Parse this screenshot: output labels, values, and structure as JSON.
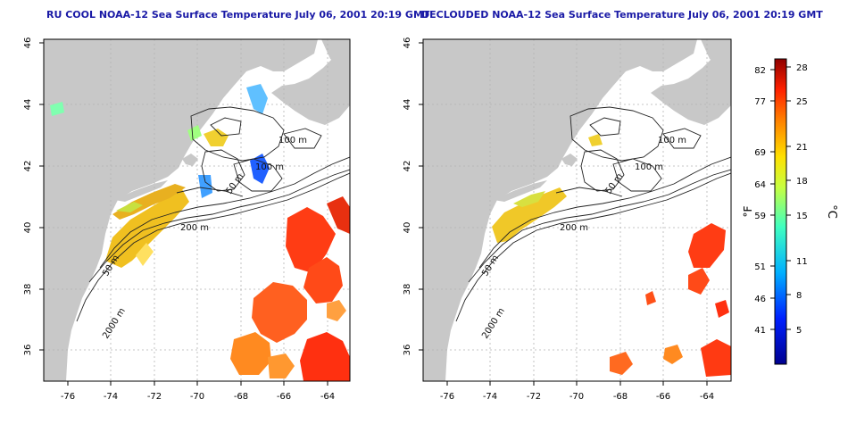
{
  "left_panel": {
    "title": "RU COOL NOAA-12 Sea Surface Temperature July 06, 2001 20:19 GMT"
  },
  "right_panel": {
    "title": "DECLOUDED NOAA-12 Sea Surface Temperature July 06, 2001 20:19 GMT"
  },
  "axes": {
    "x_ticks": [
      "-76",
      "-74",
      "-72",
      "-70",
      "-68",
      "-66",
      "-64"
    ],
    "y_ticks": [
      "46",
      "44",
      "42",
      "40",
      "38",
      "36"
    ]
  },
  "contours": {
    "labels": [
      "100 m",
      "100 m",
      "50 m",
      "200 m",
      "50 m",
      "2000 m"
    ]
  },
  "colorbar": {
    "fahrenheit_ticks": [
      "82",
      "77",
      "69",
      "64",
      "59",
      "51",
      "46",
      "41"
    ],
    "celsius_ticks": [
      "28",
      "25",
      "21",
      "18",
      "15",
      "11",
      "8",
      "5"
    ],
    "fahrenheit_unit": "°F",
    "celsius_unit": "°C"
  },
  "colors": {
    "land": "#c8c8c8",
    "ocean": "#ffffff",
    "title": "#1a1aa6",
    "grid": "#b4b4b4"
  }
}
